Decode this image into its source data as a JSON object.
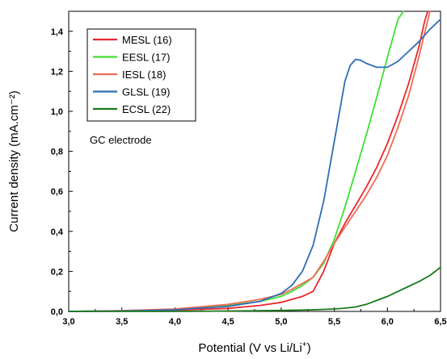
{
  "chart_data": {
    "type": "line",
    "xlabel_main": "Potential (V vs Li/Li",
    "xlabel_sup": "+",
    "xlabel_end": ")",
    "ylabel": "Current density (mA.cm⁻²)",
    "annotation": "GC electrode",
    "xlim": [
      3.0,
      6.5
    ],
    "ylim": [
      0.0,
      1.5
    ],
    "xticks": [
      3.0,
      3.5,
      4.0,
      4.5,
      5.0,
      5.5,
      6.0,
      6.5
    ],
    "xtick_labels": [
      "3,0",
      "3,5",
      "4,0",
      "4,5",
      "5,0",
      "5,5",
      "6,0",
      "6,5"
    ],
    "yticks": [
      0.0,
      0.2,
      0.4,
      0.6,
      0.8,
      1.0,
      1.2,
      1.4
    ],
    "ytick_labels": [
      "0,0",
      "0,2",
      "0,4",
      "0,6",
      "0,8",
      "1,0",
      "1,2",
      "1,4"
    ],
    "grid": false,
    "legend_position": "top-left",
    "series": [
      {
        "name": "MESL (16)",
        "color": "#e8282b",
        "x": [
          3.0,
          3.5,
          4.0,
          4.5,
          4.8,
          5.0,
          5.1,
          5.2,
          5.3,
          5.4,
          5.5,
          5.6,
          5.7,
          5.8,
          5.9,
          6.0,
          6.1,
          6.2,
          6.3,
          6.35,
          6.38
        ],
        "y": [
          0.0,
          0.002,
          0.006,
          0.015,
          0.03,
          0.045,
          0.06,
          0.075,
          0.1,
          0.2,
          0.34,
          0.44,
          0.53,
          0.62,
          0.72,
          0.84,
          0.98,
          1.14,
          1.33,
          1.45,
          1.5
        ]
      },
      {
        "name": "EESL (17)",
        "color": "#40e030",
        "x": [
          3.0,
          3.5,
          4.0,
          4.5,
          4.8,
          5.0,
          5.1,
          5.2,
          5.3,
          5.4,
          5.5,
          5.6,
          5.7,
          5.8,
          5.9,
          6.0,
          6.1,
          6.15
        ],
        "y": [
          0.0,
          0.003,
          0.01,
          0.03,
          0.05,
          0.075,
          0.1,
          0.13,
          0.17,
          0.24,
          0.36,
          0.52,
          0.7,
          0.88,
          1.07,
          1.27,
          1.46,
          1.5
        ]
      },
      {
        "name": "IESL (18)",
        "color": "#ef6b55",
        "x": [
          3.0,
          3.5,
          4.0,
          4.5,
          4.8,
          5.0,
          5.1,
          5.2,
          5.3,
          5.4,
          5.5,
          5.6,
          5.7,
          5.8,
          5.9,
          6.0,
          6.1,
          6.2,
          6.3,
          6.4
        ],
        "y": [
          0.0,
          0.004,
          0.012,
          0.035,
          0.06,
          0.085,
          0.11,
          0.14,
          0.17,
          0.25,
          0.34,
          0.42,
          0.5,
          0.58,
          0.67,
          0.78,
          0.92,
          1.08,
          1.28,
          1.5
        ]
      },
      {
        "name": "GLSL (19)",
        "color": "#2f6db5",
        "x": [
          3.0,
          3.5,
          4.0,
          4.5,
          4.8,
          5.0,
          5.1,
          5.2,
          5.3,
          5.4,
          5.5,
          5.6,
          5.65,
          5.7,
          5.75,
          5.8,
          5.9,
          6.0,
          6.1,
          6.2,
          6.3,
          6.4,
          6.5
        ],
        "y": [
          0.0,
          0.002,
          0.008,
          0.025,
          0.05,
          0.09,
          0.13,
          0.2,
          0.33,
          0.55,
          0.85,
          1.15,
          1.23,
          1.26,
          1.255,
          1.24,
          1.22,
          1.22,
          1.25,
          1.3,
          1.35,
          1.41,
          1.46
        ]
      },
      {
        "name": "ECSL (22)",
        "color": "#1a7a1a",
        "x": [
          3.0,
          3.5,
          4.0,
          4.5,
          5.0,
          5.3,
          5.5,
          5.6,
          5.7,
          5.8,
          5.9,
          6.0,
          6.1,
          6.2,
          6.3,
          6.4,
          6.5
        ],
        "y": [
          0.0,
          0.0,
          0.0,
          0.002,
          0.005,
          0.008,
          0.012,
          0.016,
          0.022,
          0.035,
          0.055,
          0.075,
          0.1,
          0.125,
          0.15,
          0.18,
          0.22
        ]
      }
    ]
  }
}
